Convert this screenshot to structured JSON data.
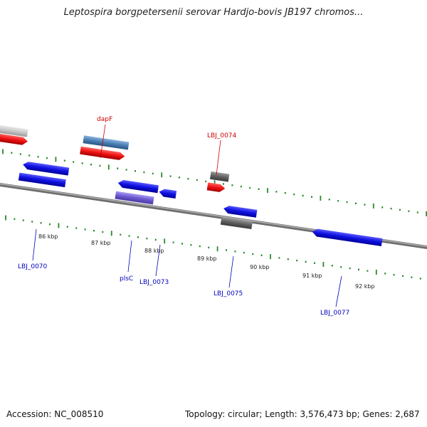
{
  "title": "Leptospira borgpetersenii serovar Hardjo-bovis JB197 chromos...",
  "footer": {
    "accession": "Accession: NC_008510",
    "summary": "Topology: circular; Length: 3,576,473 bp; Genes: 2,687"
  },
  "colors": {
    "backbone": "#8a8a8a",
    "tick": "#2a8a2a",
    "forward_gene": "#ee1111",
    "reverse_gene": "#1010e0",
    "forward_label": "#cc0000",
    "reverse_label": "#0000bb"
  },
  "scale_labels": [
    "86 kbp",
    "87 kbp",
    "88 kbp",
    "89 kbp",
    "90 kbp",
    "91 kbp",
    "92 kbp"
  ],
  "gene_labels": [
    {
      "text": "dapF",
      "strand": "forward"
    },
    {
      "text": "LBJ_0074",
      "strand": "forward"
    },
    {
      "text": "LBJ_0070",
      "strand": "reverse"
    },
    {
      "text": "plsC",
      "strand": "reverse"
    },
    {
      "text": "LBJ_0073",
      "strand": "reverse"
    },
    {
      "text": "LBJ_0075",
      "strand": "reverse"
    },
    {
      "text": "LBJ_0077",
      "strand": "reverse"
    }
  ]
}
